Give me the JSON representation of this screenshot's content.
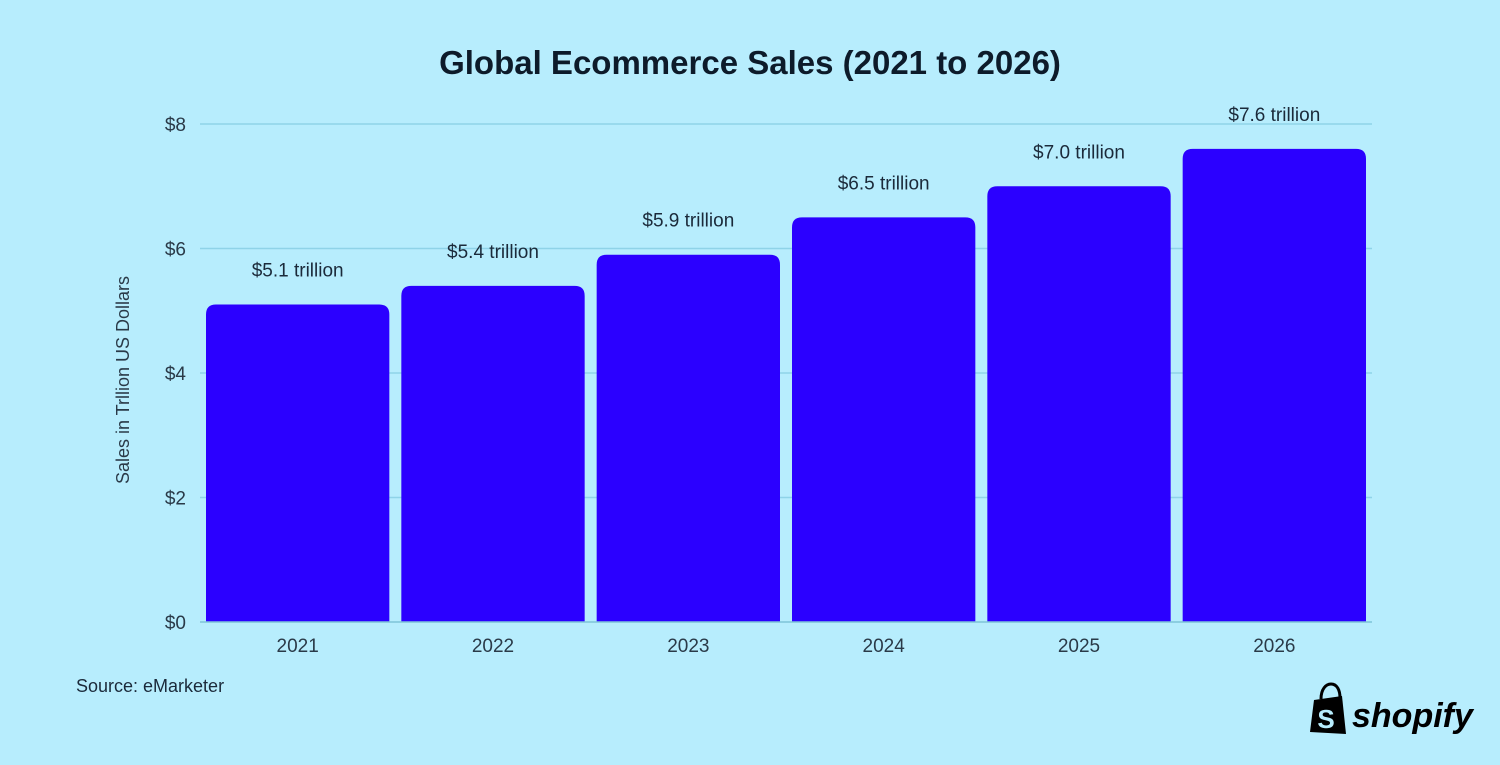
{
  "chart_data": {
    "type": "bar",
    "title": "Global Ecommerce Sales (2021 to 2026)",
    "xlabel": "",
    "ylabel": "Sales in Trllion US Dollars",
    "categories": [
      "2021",
      "2022",
      "2023",
      "2024",
      "2025",
      "2026"
    ],
    "values": [
      5.1,
      5.4,
      5.9,
      6.5,
      7.0,
      7.6
    ],
    "data_labels": [
      "$5.1 trillion",
      "$5.4 trillion",
      "$5.9 trillion",
      "$6.5 trillion",
      "$7.0 trillion",
      "$7.6 trillion"
    ],
    "ylim": [
      0,
      8
    ],
    "yticks": [
      0,
      2,
      4,
      6,
      8
    ],
    "ytick_labels": [
      "$0",
      "$2",
      "$4",
      "$6",
      "$8"
    ],
    "grid": true,
    "legend": "none",
    "bar_color": "#2B00FF",
    "background_color": "#B7EDFD"
  },
  "source": "Source: eMarketer",
  "logo": {
    "name": "shopify-bag-icon",
    "text": "shopify"
  }
}
